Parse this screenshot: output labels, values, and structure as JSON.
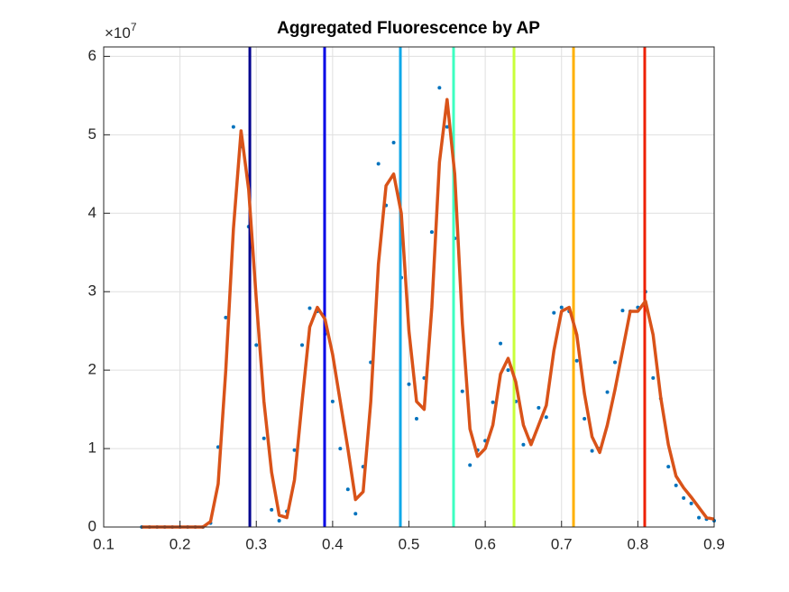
{
  "chart_data": {
    "type": "line",
    "title": "Aggregated Fluorescence by AP",
    "y_multiplier": {
      "base": "×10",
      "exponent": "7"
    },
    "x": [
      0.15,
      0.16,
      0.17,
      0.18,
      0.19,
      0.2,
      0.21,
      0.22,
      0.23,
      0.24,
      0.25,
      0.26,
      0.27,
      0.28,
      0.29,
      0.3,
      0.31,
      0.32,
      0.33,
      0.34,
      0.35,
      0.36,
      0.37,
      0.38,
      0.39,
      0.4,
      0.41,
      0.42,
      0.43,
      0.44,
      0.45,
      0.46,
      0.47,
      0.48,
      0.49,
      0.5,
      0.51,
      0.52,
      0.53,
      0.54,
      0.55,
      0.56,
      0.57,
      0.58,
      0.59,
      0.6,
      0.61,
      0.62,
      0.63,
      0.64,
      0.65,
      0.66,
      0.67,
      0.68,
      0.69,
      0.7,
      0.71,
      0.72,
      0.73,
      0.74,
      0.75,
      0.76,
      0.77,
      0.78,
      0.79,
      0.8,
      0.81,
      0.82,
      0.83,
      0.84,
      0.85,
      0.86,
      0.87,
      0.88,
      0.89,
      0.9
    ],
    "series": [
      {
        "style": "scatter",
        "color": "#0072bd",
        "values": [
          0,
          0,
          0,
          0,
          0,
          0,
          0,
          0,
          0,
          0.05,
          1.02,
          2.67,
          5.1,
          4.85,
          3.83,
          2.32,
          1.13,
          0.22,
          0.08,
          0.2,
          0.98,
          2.32,
          2.79,
          2.75,
          2.46,
          1.6,
          1.0,
          0.48,
          0.17,
          0.77,
          2.1,
          4.63,
          4.1,
          4.9,
          3.18,
          1.82,
          1.38,
          1.9,
          3.76,
          5.6,
          5.1,
          3.68,
          1.73,
          0.79,
          0.98,
          1.1,
          1.59,
          2.34,
          2.0,
          1.6,
          1.05,
          1.1,
          1.52,
          1.4,
          2.73,
          2.8,
          2.75,
          2.12,
          1.38,
          0.97,
          1.0,
          1.72,
          2.1,
          2.76,
          2.75,
          2.8,
          3.0,
          1.9,
          1.64,
          0.77,
          0.53,
          0.37,
          0.3,
          0.12,
          0.1,
          0.08
        ]
      },
      {
        "style": "line",
        "color": "#d95319",
        "values": [
          0,
          0,
          0,
          0,
          0,
          0,
          0,
          0,
          0,
          0.07,
          0.55,
          2.0,
          3.8,
          5.05,
          4.3,
          2.9,
          1.6,
          0.7,
          0.15,
          0.12,
          0.6,
          1.6,
          2.55,
          2.8,
          2.65,
          2.2,
          1.6,
          1.0,
          0.35,
          0.45,
          1.6,
          3.35,
          4.35,
          4.5,
          4.0,
          2.5,
          1.6,
          1.5,
          2.8,
          4.65,
          5.45,
          4.5,
          2.6,
          1.25,
          0.9,
          1.0,
          1.3,
          1.95,
          2.15,
          1.85,
          1.3,
          1.05,
          1.3,
          1.55,
          2.25,
          2.75,
          2.8,
          2.45,
          1.7,
          1.15,
          0.95,
          1.3,
          1.75,
          2.25,
          2.75,
          2.75,
          2.88,
          2.45,
          1.65,
          1.05,
          0.65,
          0.5,
          0.38,
          0.25,
          0.12,
          0.1
        ]
      }
    ],
    "vlines": [
      {
        "x": 0.2915,
        "color": "#00008f"
      },
      {
        "x": 0.3895,
        "color": "#0000e6"
      },
      {
        "x": 0.4888,
        "color": "#10a8e8"
      },
      {
        "x": 0.5585,
        "color": "#3dffc2"
      },
      {
        "x": 0.6377,
        "color": "#c8ff3a"
      },
      {
        "x": 0.7157,
        "color": "#ffb000"
      },
      {
        "x": 0.809,
        "color": "#ee2000"
      }
    ],
    "xlim": [
      0.1,
      0.9
    ],
    "ylim": [
      0,
      6.12
    ],
    "xticks": [
      0.1,
      0.2,
      0.3,
      0.4,
      0.5,
      0.6,
      0.7,
      0.8,
      0.9
    ],
    "yticks": [
      0,
      1,
      2,
      3,
      4,
      5,
      6
    ],
    "grid": true
  }
}
